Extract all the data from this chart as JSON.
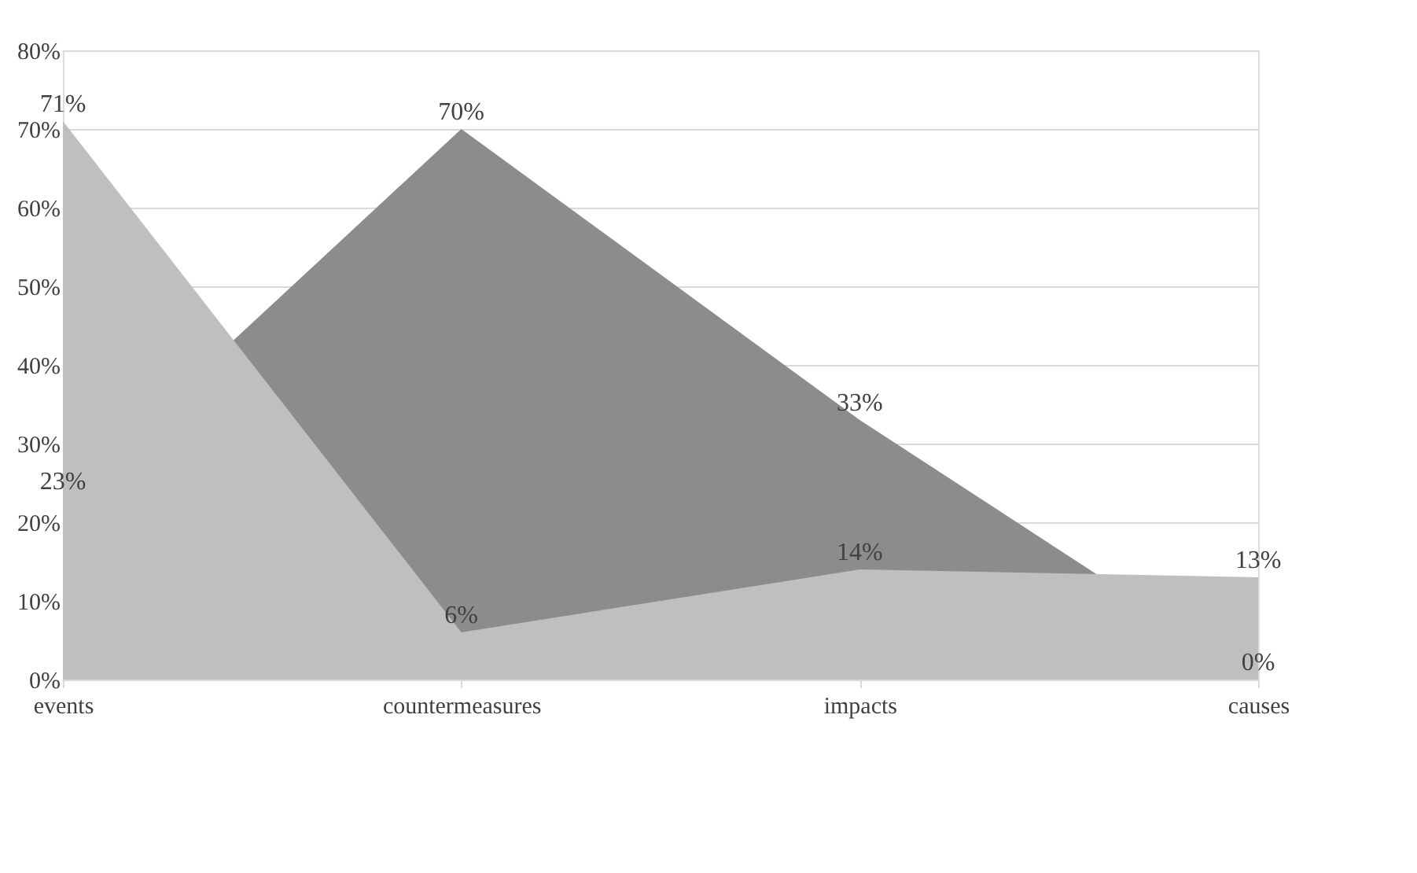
{
  "chart_data": {
    "type": "area",
    "categories": [
      "events",
      "countermeasures",
      "impacts",
      "causes"
    ],
    "series": [
      {
        "color": "#8c8c8c",
        "values": [
          23,
          70,
          33,
          0
        ],
        "value_labels": [
          "23%",
          "70%",
          "33%",
          "0%"
        ]
      },
      {
        "color": "#bfbfbf",
        "values": [
          71,
          6,
          14,
          13
        ],
        "value_labels": [
          "71%",
          "6%",
          "14%",
          "13%"
        ]
      }
    ],
    "ylim": [
      0,
      80
    ],
    "yticks": [
      {
        "value": 0,
        "label": "0%"
      },
      {
        "value": 10,
        "label": "10%"
      },
      {
        "value": 20,
        "label": "20%"
      },
      {
        "value": 30,
        "label": "30%"
      },
      {
        "value": 40,
        "label": "40%"
      },
      {
        "value": 50,
        "label": "50%"
      },
      {
        "value": 60,
        "label": "60%"
      },
      {
        "value": 70,
        "label": "70%"
      },
      {
        "value": 80,
        "label": "80%"
      }
    ],
    "grid": "y"
  }
}
